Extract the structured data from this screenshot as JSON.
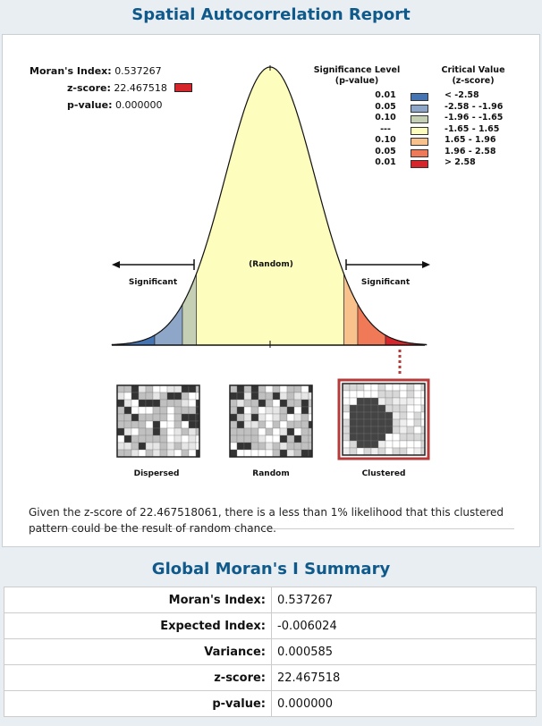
{
  "report_title": "Spatial Autocorrelation Report",
  "stats": {
    "morans_label": "Moran's Index:",
    "morans_value": "0.537267",
    "z_label": "z-score:",
    "z_value": "22.467518",
    "p_label": "p-value:",
    "p_value": "0.000000"
  },
  "legend": {
    "sig_header_1": "Significance Level",
    "sig_header_2": "(p-value)",
    "crit_header_1": "Critical Value",
    "crit_header_2": "(z-score)",
    "rows": [
      {
        "p": "0.01",
        "z": "< -2.58",
        "color": "#4574b5"
      },
      {
        "p": "0.05",
        "z": "-2.58 - -1.96",
        "color": "#8ea7c9"
      },
      {
        "p": "0.10",
        "z": "-1.96 - -1.65",
        "color": "#c5cfb3"
      },
      {
        "p": "---",
        "z": "-1.65 - 1.65",
        "color": "#fdfdbe"
      },
      {
        "p": "0.10",
        "z": "1.65 - 1.96",
        "color": "#f9c18b"
      },
      {
        "p": "0.05",
        "z": "1.96 - 2.58",
        "color": "#f07a57"
      },
      {
        "p": "0.01",
        "z": "> 2.58",
        "color": "#d7262b"
      }
    ]
  },
  "curve_labels": {
    "random": "(Random)",
    "sig_left": "Significant",
    "sig_right": "Significant"
  },
  "patterns": {
    "dispersed": "Dispersed",
    "random": "Random",
    "clustered": "Clustered",
    "highlighted": "clustered"
  },
  "note": "Given the z-score of 22.467518061, there is a less than 1% likelihood that this clustered pattern could be the result of random chance.",
  "summary_title": "Global Moran's I Summary",
  "summary": [
    {
      "label": "Moran's Index:",
      "value": "0.537267"
    },
    {
      "label": "Expected Index:",
      "value": "-0.006024"
    },
    {
      "label": "Variance:",
      "value": "0.000585"
    },
    {
      "label": "z-score:",
      "value": "22.467518"
    },
    {
      "label": "p-value:",
      "value": "0.000000"
    }
  ]
}
